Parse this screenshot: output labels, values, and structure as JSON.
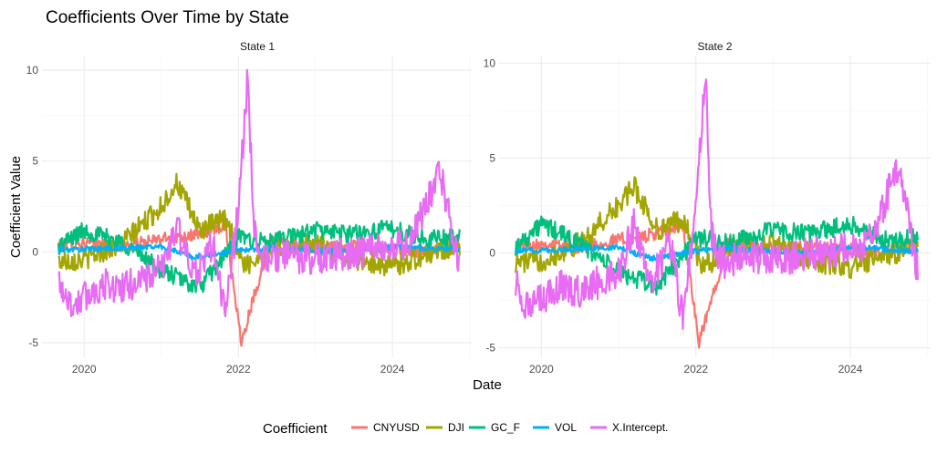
{
  "chart_data": {
    "type": "line",
    "title": "Coefficients Over Time by State",
    "xlabel": "Date",
    "ylabel": "Coefficient Value",
    "x_range": [
      "2019-06-15",
      "2025-01-15"
    ],
    "x_ticks": [
      "2020",
      "2022",
      "2024"
    ],
    "x_tick_dates": [
      "2020-01-01",
      "2022-01-01",
      "2024-01-01"
    ],
    "grid": true,
    "legend": {
      "title": "Coefficient",
      "position": "bottom",
      "entries": [
        "CNYUSD",
        "DJI",
        "GC_F",
        "VOL",
        "X.Intercept."
      ]
    },
    "colors": {
      "CNYUSD": "#F8766D",
      "DJI": "#A3A500",
      "GC_F": "#00BF7D",
      "VOL": "#00B0F6",
      "X.Intercept.": "#E76BF3"
    },
    "panels": [
      {
        "strip": "State 1",
        "ylim": [
          -5.8,
          10.8
        ],
        "y_ticks": [
          -5,
          0,
          5,
          10
        ],
        "series": [
          {
            "name": "CNYUSD",
            "x": [
              "2019-09-01",
              "2020-01-01",
              "2020-07-01",
              "2021-01-01",
              "2021-07-01",
              "2021-11-01",
              "2022-01-15",
              "2022-03-01",
              "2022-06-01",
              "2023-01-01",
              "2023-06-01",
              "2024-01-01",
              "2024-06-01",
              "2024-11-15"
            ],
            "y": [
              0.4,
              0.5,
              0.3,
              0.7,
              1.0,
              1.5,
              -5.0,
              -3.0,
              0.5,
              0.2,
              0.3,
              0.2,
              0.0,
              0.5
            ]
          },
          {
            "name": "DJI",
            "x": [
              "2019-09-01",
              "2020-01-01",
              "2020-07-01",
              "2021-01-01",
              "2021-03-15",
              "2021-07-01",
              "2021-11-01",
              "2022-02-01",
              "2022-06-01",
              "2023-01-01",
              "2023-06-01",
              "2024-01-01",
              "2024-06-01",
              "2024-11-15"
            ],
            "y": [
              -0.5,
              -0.4,
              0.5,
              2.5,
              3.8,
              1.2,
              1.8,
              -0.8,
              0.2,
              0.5,
              -0.3,
              -0.8,
              -0.2,
              0.4
            ]
          },
          {
            "name": "GC_F",
            "x": [
              "2019-09-01",
              "2020-01-01",
              "2020-07-01",
              "2021-01-01",
              "2021-07-01",
              "2022-01-01",
              "2022-06-01",
              "2023-01-01",
              "2023-06-01",
              "2024-01-01",
              "2024-06-01",
              "2024-11-15"
            ],
            "y": [
              0.3,
              1.2,
              0.5,
              -1.0,
              -2.0,
              0.8,
              0.5,
              1.2,
              1.0,
              1.3,
              0.7,
              0.8
            ]
          },
          {
            "name": "VOL",
            "x": [
              "2019-09-01",
              "2020-06-01",
              "2021-01-01",
              "2021-06-01",
              "2022-01-01",
              "2022-06-01",
              "2023-01-01",
              "2023-06-01",
              "2024-01-01",
              "2024-06-01",
              "2024-11-15"
            ],
            "y": [
              0.1,
              0.2,
              0.3,
              -0.3,
              0.1,
              0.2,
              0.1,
              0.0,
              0.3,
              0.2,
              0.1
            ]
          },
          {
            "name": "X.Intercept.",
            "x": [
              "2019-09-01",
              "2019-11-01",
              "2020-01-01",
              "2020-04-01",
              "2020-07-01",
              "2020-10-01",
              "2021-01-01",
              "2021-03-15",
              "2021-06-01",
              "2021-09-01",
              "2021-11-01",
              "2022-01-01",
              "2022-02-15",
              "2022-03-15",
              "2022-05-01",
              "2022-08-01",
              "2023-01-01",
              "2023-06-01",
              "2024-01-01",
              "2024-04-01",
              "2024-06-15",
              "2024-08-15",
              "2024-11-15"
            ],
            "y": [
              -1.5,
              -3.0,
              -2.5,
              -1.8,
              -2.0,
              -1.5,
              -1.0,
              1.5,
              -1.5,
              0.5,
              -3.5,
              2.5,
              9.8,
              1.0,
              -0.5,
              -0.2,
              -0.4,
              -0.1,
              0.2,
              0.6,
              2.8,
              4.3,
              -0.8
            ]
          }
        ]
      },
      {
        "strip": "State 2",
        "ylim": [
          -5.5,
          10.4
        ],
        "y_ticks": [
          -5,
          0,
          5,
          10
        ],
        "series": [
          {
            "name": "CNYUSD",
            "x": [
              "2019-09-01",
              "2020-01-01",
              "2020-07-01",
              "2021-01-01",
              "2021-07-01",
              "2021-11-01",
              "2022-01-15",
              "2022-03-01",
              "2022-06-01",
              "2023-01-01",
              "2023-06-01",
              "2024-01-01",
              "2024-06-01",
              "2024-11-15"
            ],
            "y": [
              0.4,
              0.5,
              0.3,
              0.7,
              1.0,
              1.5,
              -4.8,
              -3.0,
              0.5,
              0.2,
              0.3,
              0.2,
              0.0,
              0.5
            ]
          },
          {
            "name": "DJI",
            "x": [
              "2019-09-01",
              "2020-01-01",
              "2020-07-01",
              "2021-01-01",
              "2021-03-15",
              "2021-07-01",
              "2021-11-01",
              "2022-02-01",
              "2022-06-01",
              "2023-01-01",
              "2023-06-01",
              "2024-01-01",
              "2024-06-01",
              "2024-11-15"
            ],
            "y": [
              -0.5,
              -0.4,
              0.5,
              2.5,
              3.5,
              1.2,
              1.8,
              -0.8,
              0.2,
              0.5,
              -0.3,
              -0.8,
              -0.2,
              0.4
            ]
          },
          {
            "name": "GC_F",
            "x": [
              "2019-09-01",
              "2020-01-01",
              "2020-07-01",
              "2021-01-01",
              "2021-07-01",
              "2022-01-01",
              "2022-06-01",
              "2023-01-01",
              "2023-06-01",
              "2024-01-01",
              "2024-06-01",
              "2024-11-15"
            ],
            "y": [
              0.3,
              1.5,
              0.5,
              -1.0,
              -1.8,
              0.8,
              0.5,
              1.2,
              1.0,
              1.5,
              0.7,
              0.8
            ]
          },
          {
            "name": "VOL",
            "x": [
              "2019-09-01",
              "2020-06-01",
              "2021-01-01",
              "2021-06-01",
              "2022-01-01",
              "2022-06-01",
              "2023-01-01",
              "2023-06-01",
              "2024-01-01",
              "2024-06-01",
              "2024-11-15"
            ],
            "y": [
              0.1,
              0.2,
              0.3,
              -0.3,
              0.1,
              0.2,
              0.1,
              0.0,
              0.3,
              0.2,
              0.1
            ]
          },
          {
            "name": "X.Intercept.",
            "x": [
              "2019-09-01",
              "2019-11-01",
              "2020-01-01",
              "2020-04-01",
              "2020-07-01",
              "2020-10-01",
              "2021-01-01",
              "2021-03-15",
              "2021-06-01",
              "2021-09-01",
              "2021-11-01",
              "2022-01-01",
              "2022-02-15",
              "2022-03-15",
              "2022-05-01",
              "2022-08-01",
              "2023-01-01",
              "2023-06-01",
              "2024-01-01",
              "2024-04-01",
              "2024-06-15",
              "2024-08-15",
              "2024-11-15"
            ],
            "y": [
              -1.5,
              -3.0,
              -2.5,
              -1.8,
              -2.0,
              -1.5,
              -1.0,
              1.5,
              -1.5,
              0.5,
              -3.5,
              2.5,
              9.5,
              1.0,
              -0.5,
              -0.2,
              -0.4,
              -0.1,
              0.2,
              0.6,
              2.8,
              4.6,
              -1.0
            ]
          }
        ]
      }
    ]
  }
}
